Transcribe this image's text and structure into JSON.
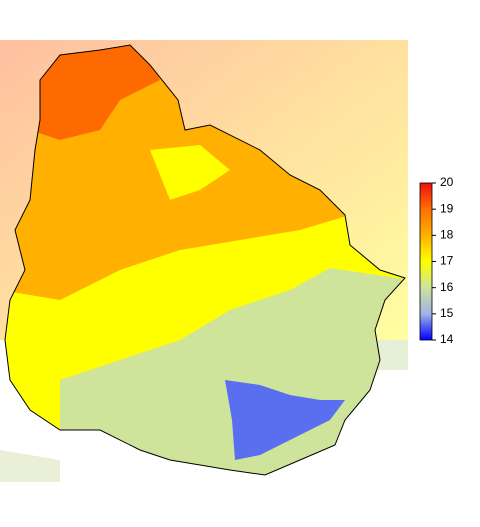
{
  "legend": {
    "range": [
      14,
      20
    ],
    "ticks": [
      14,
      15,
      16,
      17,
      18,
      19,
      20
    ],
    "colors": [
      "#0000ff",
      "#a0b4e6",
      "#cde49a",
      "#ffff00",
      "#ffb000",
      "#ff7000",
      "#ee1010"
    ]
  }
}
